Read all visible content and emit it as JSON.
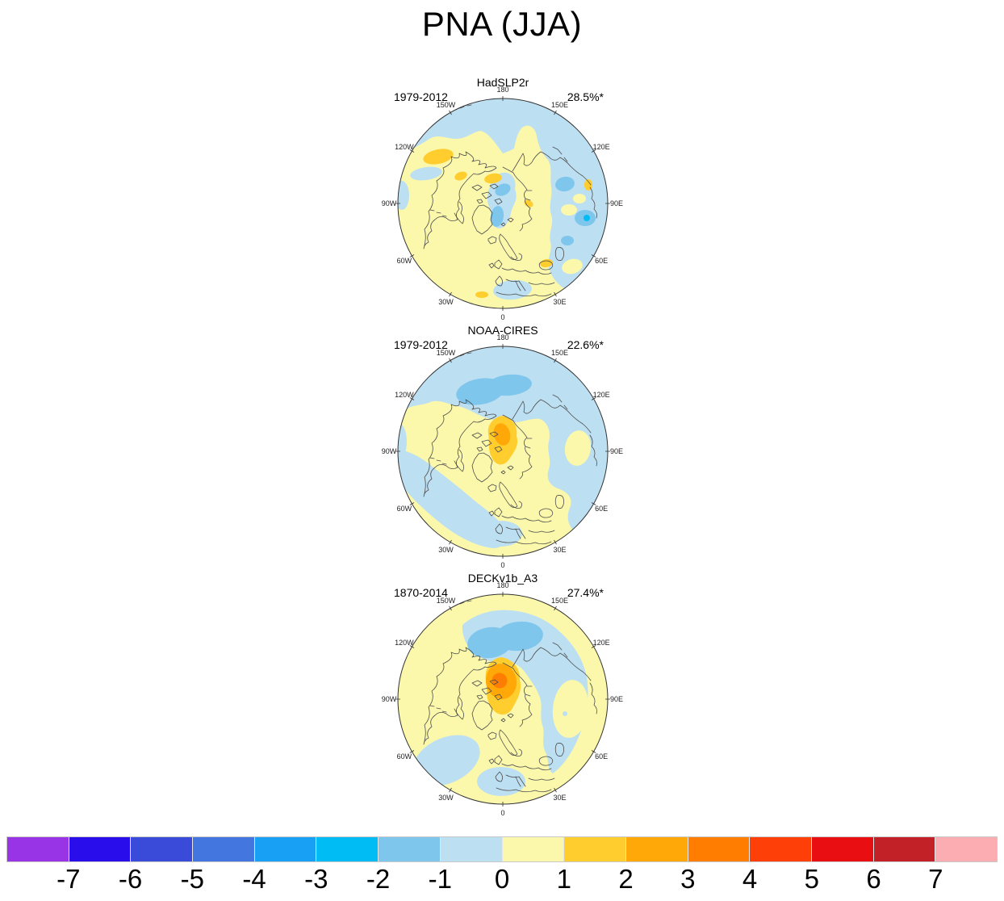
{
  "figure": {
    "title": "PNA (JJA)"
  },
  "chart_data": {
    "type": "heatmap",
    "subtype": "filled-contour north-polar stereographic maps, pole-centered, 0° longitude at bottom, 180° at top",
    "pattern": "PNA",
    "season": "JJA",
    "panels": [
      {
        "title": "HadSLP2r",
        "period": "1979-2012",
        "variance_explained": "28.5%*",
        "features": "weak pattern: 0 to +2 anomalies over North America and the Atlantic with small +1 to +2 maxima near 120W; -2 to 0 over the North Pacific, central Arctic and Eurasia with a -2 to -3 spot near 90E"
      },
      {
        "title": "NOAA-CIRES",
        "period": "1979-2012",
        "variance_explained": "22.6%*",
        "features": "+1 to +3 center over the Arctic near the pole; -2 to 0 over the North Pacific (stronger -1 to -2 blob near 180), Eurasia and the North Atlantic"
      },
      {
        "title": "DECKv1b_A3",
        "period": "1870-2014",
        "variance_explained": "27.4%*",
        "features": "strong +1 to +4 center near the pole (core 3-4); -1 to -2 blob over the North Pacific near 180; -1 to 0 over Siberia, the mid-Atlantic and Europe"
      }
    ],
    "meridian_labels": [
      "180",
      "150E",
      "120E",
      "90E",
      "60E",
      "30E",
      "0",
      "30W",
      "60W",
      "90W",
      "120W",
      "150W"
    ],
    "colorbar": {
      "orientation": "horizontal",
      "tick_labels": [
        "-7",
        "-6",
        "-5",
        "-4",
        "-3",
        "-2",
        "-1",
        "0",
        "1",
        "2",
        "3",
        "4",
        "5",
        "6",
        "7"
      ],
      "colors": [
        "#9933e6",
        "#2a0deb",
        "#3a4ad9",
        "#4377df",
        "#17a0f4",
        "#00bcf4",
        "#7fc6ec",
        "#bddff2",
        "#fbf8ac",
        "#ffce2e",
        "#ffa807",
        "#ff7d00",
        "#ff3f08",
        "#e90e12",
        "#c22127",
        "#fbadb2"
      ]
    }
  }
}
